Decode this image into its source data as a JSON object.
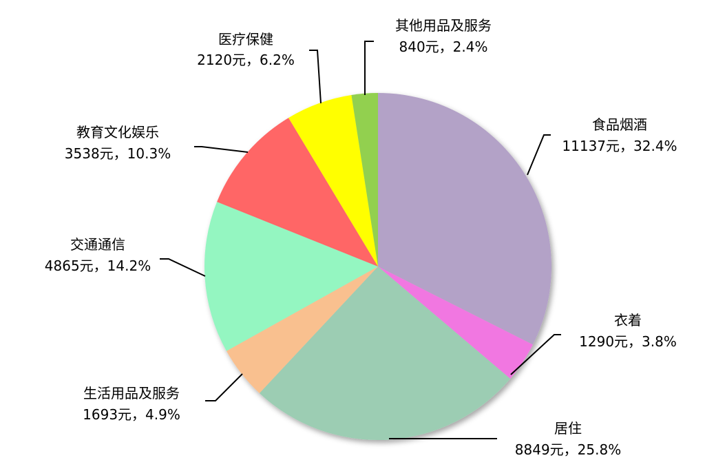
{
  "chart_data": {
    "type": "pie",
    "title": "",
    "unit": "元",
    "slices": [
      {
        "name": "食品烟酒",
        "value": 11137,
        "percent": 32.4,
        "value_label": "11137元，32.4%",
        "color": "#b3a2c7"
      },
      {
        "name": "衣着",
        "value": 1290,
        "percent": 3.8,
        "value_label": "1290元，3.8%",
        "color": "#f177e1"
      },
      {
        "name": "居住",
        "value": 8849,
        "percent": 25.8,
        "value_label": "8849元，25.8%",
        "color": "#9ccdb3"
      },
      {
        "name": "生活用品及服务",
        "value": 1693,
        "percent": 4.9,
        "value_label": "1693元，4.9%",
        "color": "#f9c08f"
      },
      {
        "name": "交通通信",
        "value": 4865,
        "percent": 14.2,
        "value_label": "4865元，14.2%",
        "color": "#94f6c1"
      },
      {
        "name": "教育文化娱乐",
        "value": 3538,
        "percent": 10.3,
        "value_label": "3538元，10.3%",
        "color": "#ff6666"
      },
      {
        "name": "医疗保健",
        "value": 2120,
        "percent": 6.2,
        "value_label": "2120元，6.2%",
        "color": "#ffff00"
      },
      {
        "name": "其他用品及服务",
        "value": 840,
        "percent": 2.4,
        "value_label": "840元，2.4%",
        "color": "#92d050"
      }
    ],
    "start_angle_deg": 0,
    "direction": "clockwise",
    "legend": "none"
  }
}
